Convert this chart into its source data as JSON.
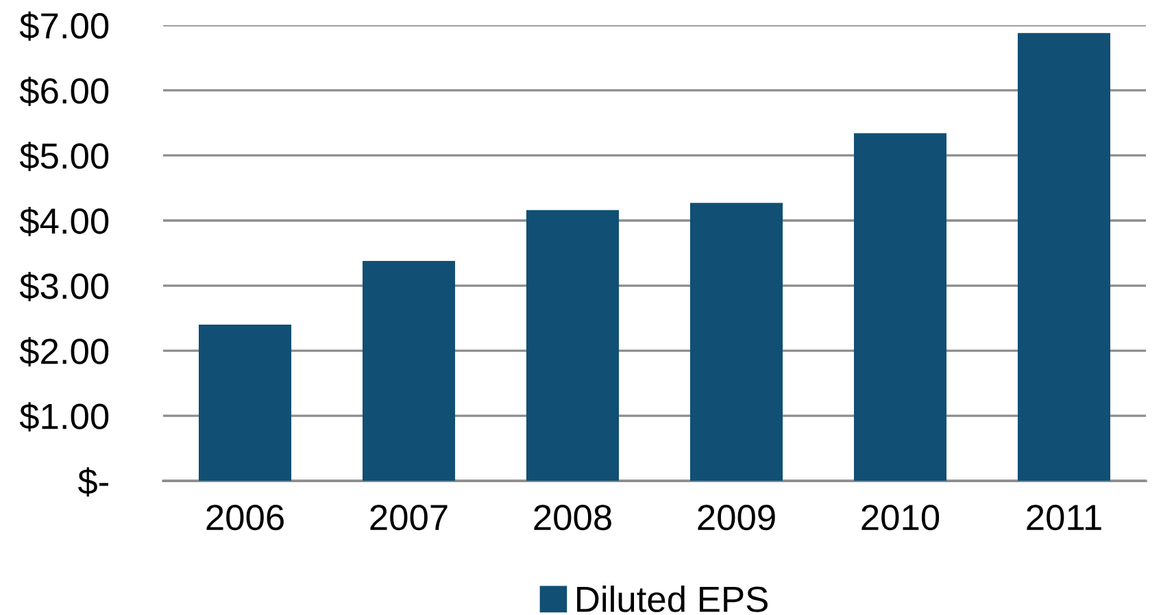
{
  "chart_data": {
    "type": "bar",
    "categories": [
      "2006",
      "2007",
      "2008",
      "2009",
      "2010",
      "2011"
    ],
    "series": [
      {
        "name": "Diluted EPS",
        "color": "#114f74",
        "values": [
          2.4,
          3.38,
          4.16,
          4.27,
          5.34,
          6.88
        ]
      }
    ],
    "ylim": [
      0,
      7
    ],
    "yticks": [
      {
        "value": 0,
        "label": "$-"
      },
      {
        "value": 1,
        "label": "$1.00"
      },
      {
        "value": 2,
        "label": "$2.00"
      },
      {
        "value": 3,
        "label": "$3.00"
      },
      {
        "value": 4,
        "label": "$4.00"
      },
      {
        "value": 5,
        "label": "$5.00"
      },
      {
        "value": 6,
        "label": "$6.00"
      },
      {
        "value": 7,
        "label": "$7.00"
      }
    ],
    "grid": "y",
    "legend": "bottom"
  }
}
